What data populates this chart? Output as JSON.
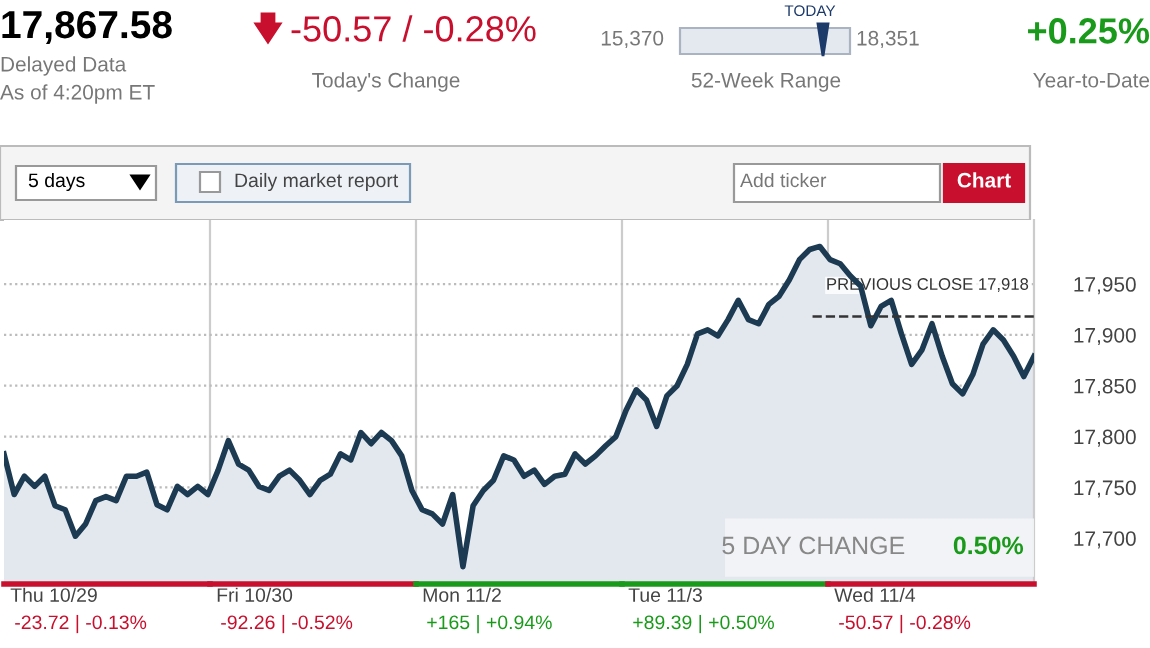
{
  "chart_data": {
    "type": "area",
    "color": "#1c3a52",
    "categories": [
      null,
      null,
      null,
      null,
      null,
      null,
      null,
      null,
      null,
      null,
      null,
      null,
      null,
      null,
      null,
      null,
      null,
      null,
      null,
      null,
      null,
      null,
      null,
      null,
      null,
      null,
      null,
      null,
      null,
      null,
      null,
      null,
      null,
      null,
      null,
      null,
      null,
      null,
      null,
      null,
      null,
      null,
      null,
      null,
      null,
      null,
      null,
      null,
      null,
      null,
      null,
      null,
      null,
      null,
      null,
      null,
      null,
      null,
      null,
      null,
      null,
      null,
      null,
      null,
      null,
      null,
      null,
      null,
      null,
      null,
      null,
      null,
      null,
      null,
      null,
      null,
      null,
      null,
      null,
      null,
      null,
      null,
      null,
      null,
      null,
      null,
      null,
      null,
      null,
      null,
      null,
      null,
      null,
      null,
      null,
      null,
      null,
      null,
      null,
      null,
      null,
      null
    ],
    "values": [
      17783,
      17743,
      17761,
      17751,
      17761,
      17732,
      17728,
      17702,
      17714,
      17737,
      17741,
      17737,
      17761,
      17761,
      17765,
      17733,
      17728,
      17751,
      17743,
      17751,
      17743,
      17767,
      17796,
      17773,
      17767,
      17751,
      17747,
      17761,
      17767,
      17757,
      17743,
      17757,
      17763,
      17783,
      17777,
      17804,
      17793,
      17804,
      17796,
      17781,
      17747,
      17728,
      17724,
      17714,
      17743,
      17672,
      17732,
      17747,
      17757,
      17781,
      17777,
      17761,
      17767,
      17753,
      17761,
      17763,
      17783,
      17773,
      17781,
      17791,
      17800,
      17826,
      17846,
      17836,
      17810,
      17840,
      17850,
      17871,
      17901,
      17905,
      17899,
      17915,
      17934,
      17915,
      17911,
      17930,
      17938,
      17954,
      17974,
      17984,
      17987,
      17974,
      17970,
      17958,
      17948,
      17909,
      17928,
      17934,
      17901,
      17871,
      17885,
      17911,
      17879,
      17852,
      17842,
      17861,
      17891,
      17905,
      17895,
      17879,
      17859,
      17879
    ],
    "ylim": [
      17655,
      18013
    ],
    "yticks": [
      {
        "value": 17700,
        "label": "17,700"
      },
      {
        "value": 17750,
        "label": "17,750"
      },
      {
        "value": 17800,
        "label": "17,800"
      },
      {
        "value": 17850,
        "label": "17,850"
      },
      {
        "value": 17900,
        "label": "17,900"
      },
      {
        "value": 17950,
        "label": "17,950"
      }
    ],
    "grid": "y",
    "ref_lines": [
      {
        "axis": "y",
        "value": 17918,
        "label": "PREVIOUS CLOSE 17,918",
        "line_style": "dashed",
        "color": "#333333"
      }
    ],
    "annotations": [
      "17,867.58",
      "Delayed Data",
      "As of 4:20pm ET",
      "-50.57 / -0.28%",
      "Today's Change",
      "15,370",
      "TODAY",
      "18,351",
      "52-Week Range",
      "+0.25%",
      "Year-to-Date",
      "5 days",
      "Daily market report",
      "Add ticker",
      "Chart",
      "5 DAY CHANGE",
      "0.50%",
      "Thu 10/29",
      "-23.72 | -0.13%",
      "Fri 10/30",
      "-92.26 | -0.52%",
      "Mon 11/2",
      "+165 | +0.94%",
      "Tue 11/3",
      "+89.39 | +0.50%",
      "Wed 11/4",
      "-50.57 | -0.28%"
    ]
  }
}
